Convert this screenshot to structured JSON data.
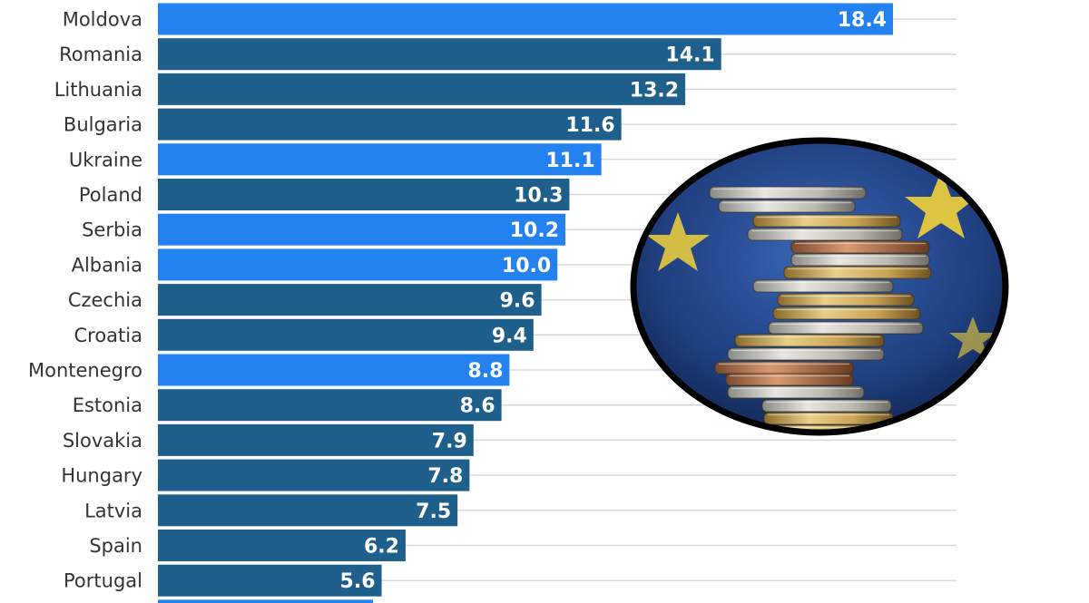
{
  "chart_data": {
    "type": "bar",
    "orientation": "horizontal",
    "categories": [
      "Moldova",
      "Romania",
      "Lithuania",
      "Bulgaria",
      "Ukraine",
      "Poland",
      "Serbia",
      "Albania",
      "Czechia",
      "Croatia",
      "Montenegro",
      "Estonia",
      "Slovakia",
      "Hungary",
      "Latvia",
      "Spain",
      "Portugal"
    ],
    "values": [
      18.4,
      14.1,
      13.2,
      11.6,
      11.1,
      10.3,
      10.2,
      10.0,
      9.6,
      9.4,
      8.8,
      8.6,
      7.9,
      7.8,
      7.5,
      6.2,
      5.6
    ],
    "value_labels": [
      "18.4",
      "14.1",
      "13.2",
      "11.6",
      "11.1",
      "10.3",
      "10.2",
      "10.0",
      "9.6",
      "9.4",
      "8.8",
      "8.6",
      "7.9",
      "7.8",
      "7.5",
      "6.2",
      "5.6"
    ],
    "highlighted": [
      true,
      false,
      false,
      false,
      true,
      false,
      true,
      true,
      false,
      false,
      true,
      false,
      false,
      false,
      false,
      false,
      false
    ],
    "partially_visible_next_bar": {
      "highlighted": true
    },
    "xlim": [
      0,
      20
    ],
    "grid": true,
    "colors": {
      "default_bar": "#1e5f8c",
      "highlight_bar": "#2381f0",
      "value_label": "#ffffff",
      "category_label": "#333333",
      "grid": "#d9d9d9"
    }
  },
  "image": {
    "icon": "euro-coins-photo",
    "frame_color": "#000000",
    "background_color": "#1f3f7f",
    "star_color": "#f2d23a"
  }
}
